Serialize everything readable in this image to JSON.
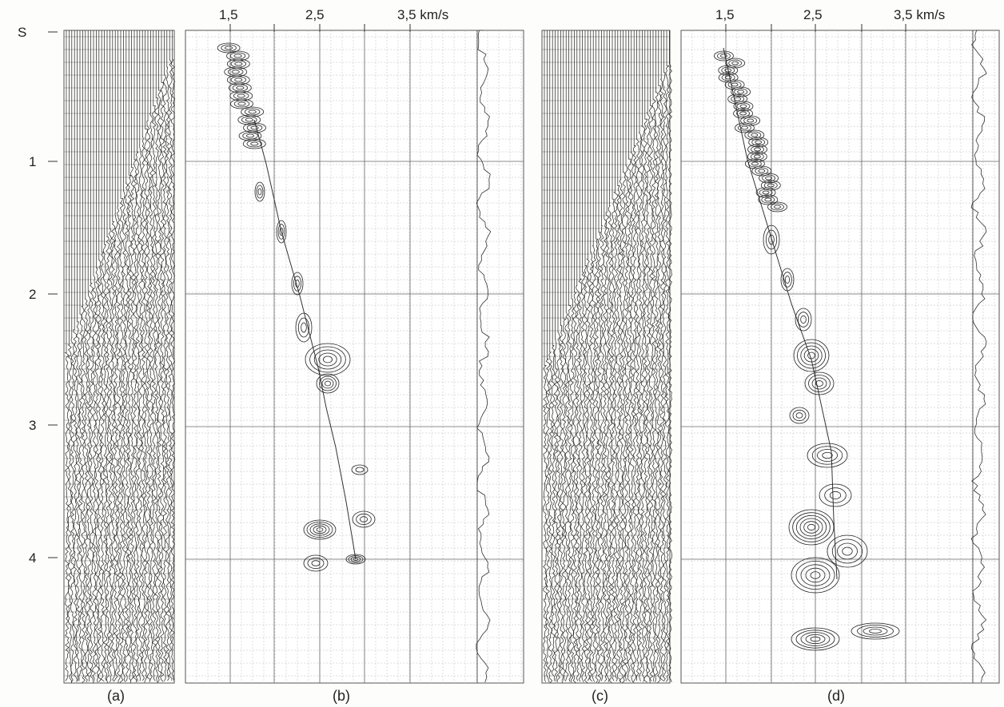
{
  "time_axis": {
    "labels": [
      "S",
      "1",
      "2",
      "3",
      "4"
    ]
  },
  "panels": [
    {
      "caption": "(a)"
    },
    {
      "caption": "(b)",
      "velocity_labels": [
        "1,5",
        "2,5",
        "3,5 km/s"
      ]
    },
    {
      "caption": "(c)"
    },
    {
      "caption": "(d)",
      "velocity_labels": [
        "1,5",
        "2,5",
        "3,5 km/s"
      ]
    }
  ]
}
